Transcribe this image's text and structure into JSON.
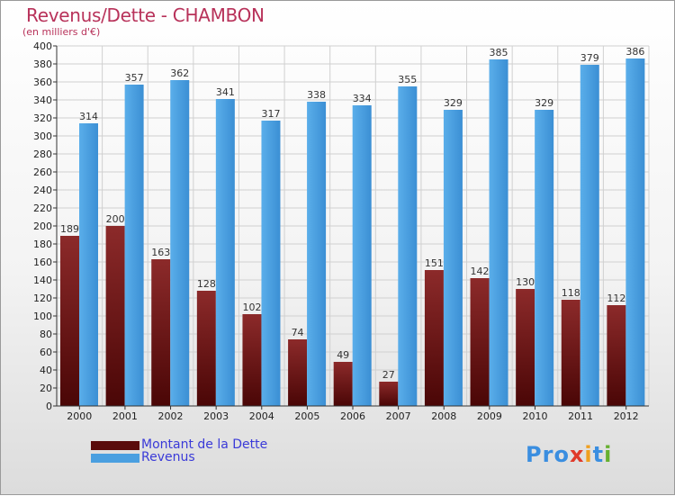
{
  "title": "Revenus/Dette - CHAMBON",
  "subtitle": "(en milliers d'€)",
  "logo": [
    "P",
    "r",
    "o",
    "x",
    "i",
    "t",
    "i"
  ],
  "colors": {
    "debt": "#7a1a1a",
    "revenue": "#4a9fe0",
    "title": "#b8325a",
    "logo": [
      "#3a8ee0",
      "#3a8ee0",
      "#3a8ee0",
      "#e03a2a",
      "#f0a020",
      "#3a8ee0",
      "#66b030"
    ]
  },
  "legend": [
    {
      "label": "Montant de la Dette",
      "series": "debt"
    },
    {
      "label": "Revenus",
      "series": "revenue"
    }
  ],
  "chart_data": {
    "type": "bar",
    "title": "Revenus/Dette - CHAMBON",
    "ylabel": "(en milliers d'€)",
    "xlabel": "",
    "ylim": [
      0,
      400
    ],
    "ytick_step": 20,
    "grid": true,
    "legend_position": "bottom-left",
    "categories": [
      "2000",
      "2001",
      "2002",
      "2003",
      "2004",
      "2005",
      "2006",
      "2007",
      "2008",
      "2009",
      "2010",
      "2011",
      "2012"
    ],
    "series": [
      {
        "name": "Montant de la Dette",
        "key": "debt",
        "values": [
          189,
          200,
          163,
          128,
          102,
          74,
          49,
          27,
          151,
          142,
          130,
          118,
          112
        ]
      },
      {
        "name": "Revenus",
        "key": "revenue",
        "values": [
          314,
          357,
          362,
          341,
          317,
          338,
          334,
          355,
          329,
          385,
          329,
          379,
          386
        ]
      }
    ]
  }
}
